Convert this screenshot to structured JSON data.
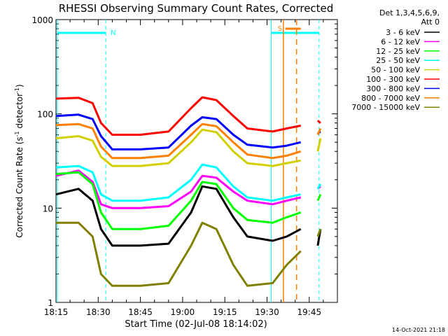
{
  "chart_data": {
    "type": "line",
    "title": "RHESSI Observing Summary Count Rates, Corrected",
    "xlabel": "Start Time (02-Jul-08 18:14:02)",
    "ylabel": "Corrected Count Rate (s",
    "ylabel_sup1": "-1",
    "ylabel_mid": " detector",
    "ylabel_sup2": "-1",
    "ylabel_end": ")",
    "y_scale": "log",
    "ylim": [
      1,
      1000
    ],
    "xlim_minutes": [
      0,
      100
    ],
    "x_start": "18:14:02",
    "x_ticks": [
      {
        "min": 0,
        "label": "18:15"
      },
      {
        "min": 15,
        "label": "18:30"
      },
      {
        "min": 30,
        "label": "18:45"
      },
      {
        "min": 45,
        "label": "19:00"
      },
      {
        "min": 60,
        "label": "19:15"
      },
      {
        "min": 75,
        "label": "19:30"
      },
      {
        "min": 90,
        "label": "19:45"
      }
    ],
    "y_ticks": [
      {
        "value": 1,
        "label": "1"
      },
      {
        "value": 10,
        "label": "10"
      },
      {
        "value": 100,
        "label": "100"
      },
      {
        "value": 1000,
        "label": "1000"
      }
    ],
    "legend_header": [
      "Det 1,3,4,5,6,9,",
      "Att 0"
    ],
    "timestamp": "14-Oct-2021 21:18",
    "night_label": "N",
    "saa_label": "S",
    "series": [
      {
        "name": "3 - 6 keV",
        "color": "#000000",
        "mins": [
          0,
          8,
          13,
          16,
          20,
          30,
          40,
          48,
          52,
          57,
          63,
          68,
          77,
          82,
          87,
          88,
          89,
          92,
          93,
          94
        ],
        "values": [
          14,
          16,
          12,
          6,
          4,
          4,
          4.2,
          9,
          17,
          16,
          8,
          5,
          4.5,
          5,
          6,
          null,
          null,
          null,
          4,
          6
        ]
      },
      {
        "name": "6 - 12 keV",
        "color": "#ff00ff",
        "mins": [
          0,
          8,
          13,
          16,
          20,
          30,
          40,
          48,
          52,
          57,
          63,
          68,
          77,
          82,
          87,
          88,
          89,
          92,
          93,
          94
        ],
        "values": [
          22,
          25,
          19,
          11,
          10,
          10,
          10.5,
          15,
          22,
          21,
          15,
          12,
          11,
          12,
          13,
          null,
          null,
          null,
          16,
          17
        ]
      },
      {
        "name": "12 - 25 keV",
        "color": "#00ff00",
        "mins": [
          0,
          8,
          13,
          16,
          20,
          30,
          40,
          48,
          52,
          57,
          63,
          68,
          77,
          82,
          87,
          88,
          89,
          92,
          93,
          94
        ],
        "values": [
          23,
          24,
          18,
          9,
          6,
          6,
          6.5,
          12,
          19,
          18,
          10,
          7.5,
          7,
          8,
          9,
          null,
          null,
          null,
          12,
          14
        ]
      },
      {
        "name": "25 - 50 keV",
        "color": "#00ffff",
        "mins": [
          0,
          8,
          13,
          16,
          20,
          30,
          40,
          48,
          52,
          57,
          63,
          68,
          77,
          82,
          87,
          88,
          89,
          92,
          93,
          94
        ],
        "values": [
          27,
          28,
          24,
          14,
          12,
          12,
          13,
          20,
          29,
          27,
          17,
          13,
          12,
          13,
          14,
          null,
          null,
          null,
          16,
          18
        ]
      },
      {
        "name": "50 - 100 keV",
        "color": "#d0d000",
        "mins": [
          0,
          8,
          13,
          16,
          20,
          30,
          40,
          48,
          52,
          57,
          63,
          68,
          77,
          82,
          87,
          88,
          89,
          92,
          93,
          94
        ],
        "values": [
          55,
          58,
          52,
          35,
          28,
          28,
          30,
          50,
          68,
          64,
          40,
          30,
          28,
          30,
          32,
          null,
          null,
          null,
          40,
          55
        ]
      },
      {
        "name": "100 - 300 keV",
        "color": "#ff0000",
        "mins": [
          0,
          8,
          13,
          16,
          20,
          30,
          40,
          48,
          52,
          57,
          63,
          68,
          77,
          82,
          87,
          88,
          89,
          92,
          93,
          94
        ],
        "values": [
          145,
          148,
          130,
          80,
          60,
          60,
          65,
          115,
          150,
          140,
          95,
          70,
          65,
          70,
          75,
          null,
          null,
          null,
          85,
          80
        ]
      },
      {
        "name": "300 - 800 keV",
        "color": "#0000ff",
        "mins": [
          0,
          8,
          13,
          16,
          20,
          30,
          40,
          48,
          52,
          57,
          63,
          68,
          77,
          82,
          87,
          88,
          89,
          92,
          93,
          94
        ],
        "values": [
          95,
          98,
          88,
          58,
          42,
          42,
          44,
          75,
          92,
          88,
          60,
          47,
          44,
          46,
          50,
          null,
          null,
          null,
          62,
          65
        ]
      },
      {
        "name": "800 - 7000 keV",
        "color": "#ff8000",
        "mins": [
          0,
          8,
          13,
          16,
          20,
          30,
          40,
          48,
          52,
          57,
          63,
          68,
          77,
          82,
          87,
          88,
          89,
          92,
          93,
          94
        ],
        "values": [
          76,
          78,
          70,
          45,
          34,
          34,
          36,
          60,
          78,
          74,
          50,
          37,
          34,
          36,
          40,
          null,
          null,
          null,
          60,
          70
        ]
      },
      {
        "name": "7000 - 15000 keV",
        "color": "#808000",
        "mins": [
          0,
          8,
          13,
          16,
          20,
          30,
          40,
          48,
          52,
          57,
          63,
          68,
          77,
          82,
          87,
          88,
          89,
          92,
          93,
          94
        ],
        "values": [
          7,
          7,
          5,
          2,
          1.5,
          1.5,
          1.6,
          4,
          7,
          6,
          2.5,
          1.5,
          1.6,
          2.5,
          3.5,
          null,
          null,
          null,
          5,
          6
        ]
      }
    ],
    "night_lines_min": [
      0.5,
      17.7,
      76.5,
      93.5
    ],
    "day_bars": [
      {
        "from": 0.5,
        "to": 17.7
      },
      {
        "from": 76.5,
        "to": 93.5
      }
    ],
    "saa_interval": {
      "from": 80.8,
      "to": 85.5,
      "lines": [
        80.8,
        85.5
      ]
    },
    "saa_bar": {
      "from": 81.5,
      "to": 87
    }
  }
}
